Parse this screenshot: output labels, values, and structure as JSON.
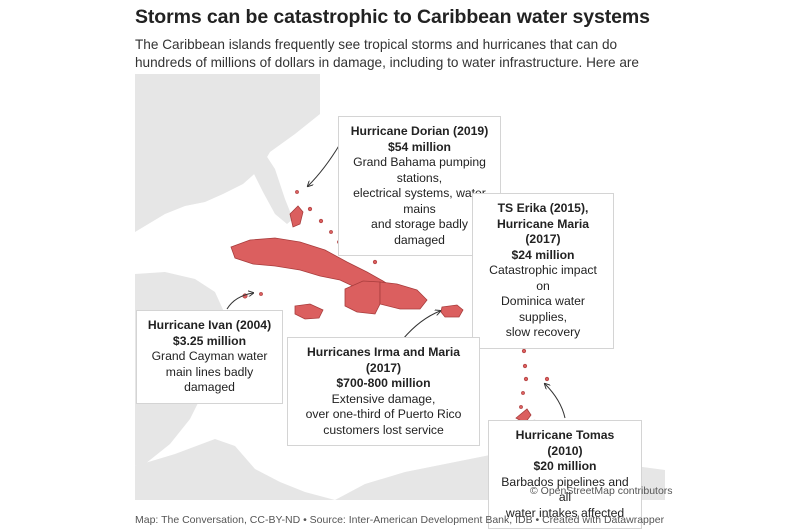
{
  "header": {
    "title": "Storms can be catastrophic to Caribbean water systems",
    "subtitle": "The Caribbean islands frequently see tropical storms and hurricanes that can do hundreds of millions of dollars in damage, including to water infrastructure. Here are some examples."
  },
  "colors": {
    "land": "#e6e6e6",
    "affected": "#db5f5f",
    "affected_stroke": "#a83c3c",
    "callout_border": "#d4d4d4"
  },
  "callouts": [
    {
      "id": "dorian",
      "title": "Hurricane Dorian (2019)",
      "cost": "$54 million",
      "desc": [
        "Grand Bahama pumping stations,",
        "electrical systems, water mains",
        "and storage badly damaged"
      ]
    },
    {
      "id": "erika",
      "title": "TS Erika (2015),",
      "title2": "Hurricane Maria (2017)",
      "cost": "$24 million",
      "desc": [
        "Catastrophic impact on",
        "Dominica water supplies,",
        "slow recovery"
      ]
    },
    {
      "id": "ivan",
      "title": "Hurricane Ivan (2004)",
      "cost": "$3.25 million",
      "desc": [
        "Grand Cayman water",
        "main lines badly damaged"
      ]
    },
    {
      "id": "irma",
      "title": "Hurricanes Irma and Maria (2017)",
      "cost": "$700-800 million",
      "desc": [
        "Extensive damage,",
        "over one-third of Puerto Rico",
        "customers lost service"
      ]
    },
    {
      "id": "tomas",
      "title": "Hurricane Tomas (2010)",
      "cost": "$20 million",
      "desc": [
        "Barbados pipelines and all",
        "water intakes affected"
      ]
    }
  ],
  "map_attribution": "© OpenStreetMap contributors",
  "footer": "Map: The Conversation, CC-BY-ND • Source: Inter-American Development Bank, IDB • Created with Datawrapper"
}
